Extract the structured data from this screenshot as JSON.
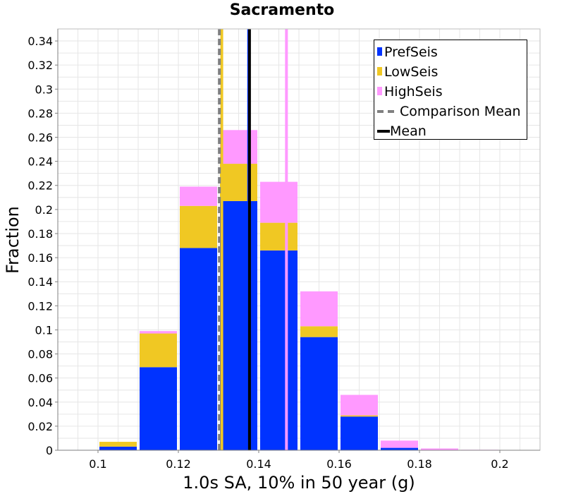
{
  "chart_data": {
    "type": "bar",
    "title": "Sacramento",
    "xlabel": "1.0s SA, 10% in 50 year (g)",
    "ylabel": "Fraction",
    "xlim": [
      0.09,
      0.21
    ],
    "ylim": [
      0,
      0.35
    ],
    "x_ticks": [
      "0.1",
      "0.12",
      "0.14",
      "0.16",
      "0.18",
      "0.2"
    ],
    "x_tick_values": [
      0.1,
      0.12,
      0.14,
      0.16,
      0.18,
      0.2
    ],
    "y_ticks": [
      "0",
      "0.02",
      "0.04",
      "0.06",
      "0.08",
      "0.1",
      "0.12",
      "0.14",
      "0.16",
      "0.18",
      "0.2",
      "0.22",
      "0.24",
      "0.26",
      "0.28",
      "0.3",
      "0.32",
      "0.34"
    ],
    "y_tick_values": [
      0,
      0.02,
      0.04,
      0.06,
      0.08,
      0.1,
      0.12,
      0.14,
      0.16,
      0.18,
      0.2,
      0.22,
      0.24,
      0.26,
      0.28,
      0.3,
      0.32,
      0.34
    ],
    "grid": true,
    "stacked": true,
    "bin_width": 0.01,
    "bin_centers": [
      0.095,
      0.105,
      0.115,
      0.125,
      0.135,
      0.145,
      0.155,
      0.165,
      0.175,
      0.185,
      0.195,
      0.205
    ],
    "series": [
      {
        "name": "PrefSeis",
        "color": "#0033ff",
        "values": [
          0.0003,
          0.003,
          0.069,
          0.168,
          0.207,
          0.166,
          0.094,
          0.028,
          0.002,
          0.0003,
          0.0001,
          0.0
        ]
      },
      {
        "name": "LowSeis",
        "color": "#f0c823",
        "values": [
          0.0,
          0.004,
          0.028,
          0.035,
          0.031,
          0.023,
          0.009,
          0.001,
          0.0,
          0.0,
          0.0,
          0.0
        ]
      },
      {
        "name": "HighSeis",
        "color": "#ff99ff",
        "values": [
          0.0,
          0.0,
          0.002,
          0.016,
          0.028,
          0.034,
          0.029,
          0.017,
          0.006,
          0.0012,
          0.0003,
          0.0
        ]
      }
    ],
    "lines": [
      {
        "name": "Comparison Mean",
        "style": "dashed",
        "color": "#808080",
        "x": 0.1302
      },
      {
        "name": "Mean",
        "style": "solid",
        "color": "#000000",
        "x": 0.1377
      },
      {
        "name": "PrefSeis mean",
        "style": "solid",
        "color": "#0033ff",
        "x": 0.1375
      },
      {
        "name": "LowSeis mean",
        "style": "solid",
        "color": "#f0c823",
        "x": 0.1308
      },
      {
        "name": "HighSeis mean",
        "style": "solid",
        "color": "#ff99ff",
        "x": 0.1469
      }
    ],
    "legend": {
      "position": "top-right",
      "entries": [
        {
          "label": "PrefSeis",
          "kind": "box",
          "color": "#0033ff"
        },
        {
          "label": "LowSeis",
          "kind": "box",
          "color": "#f0c823"
        },
        {
          "label": "HighSeis",
          "kind": "box",
          "color": "#ff99ff"
        },
        {
          "label": "Comparison Mean",
          "kind": "dashed",
          "color": "#808080"
        },
        {
          "label": "Mean",
          "kind": "solid",
          "color": "#000000"
        }
      ]
    }
  }
}
